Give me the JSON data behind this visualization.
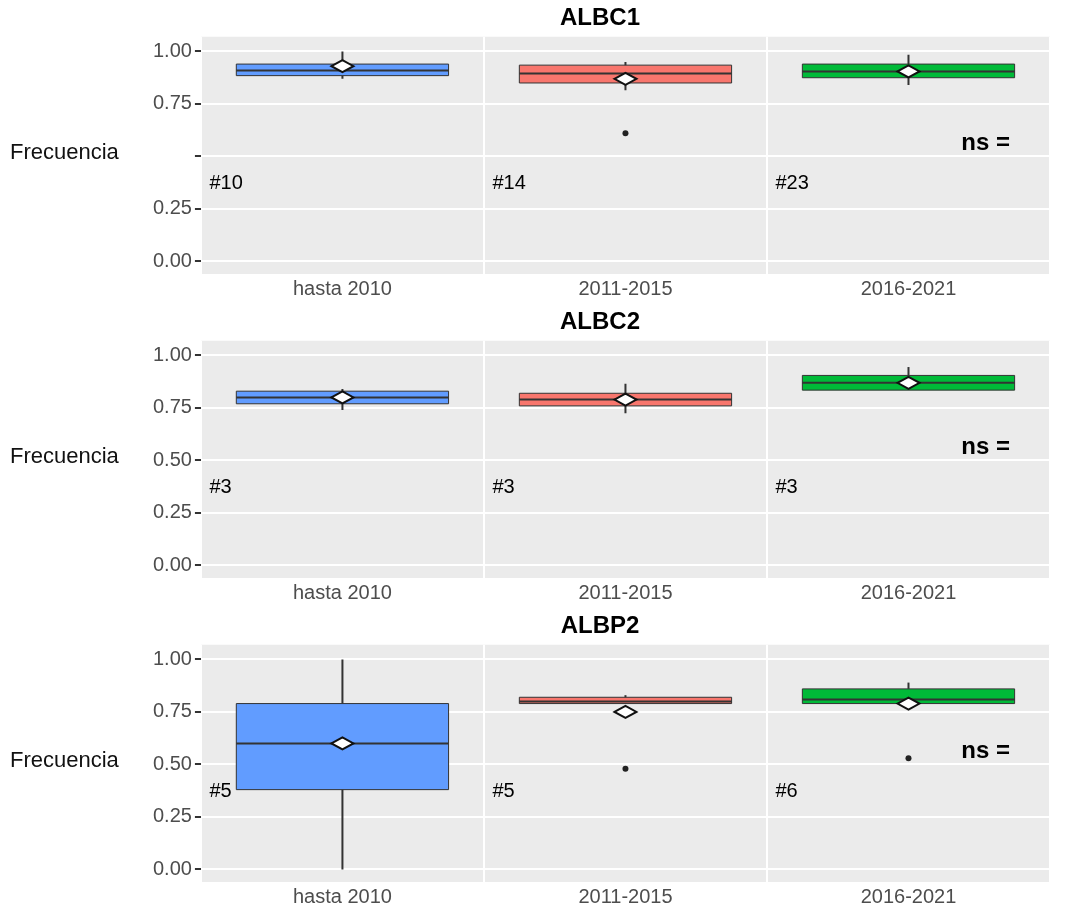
{
  "chart_data": [
    {
      "type": "box",
      "title": "ALBC1",
      "ylabel": "Frecuencia",
      "categories": [
        "hasta 2010",
        "2011-2015",
        "2016-2021"
      ],
      "colors": [
        "#619cff",
        "#f8766d",
        "#00ba38"
      ],
      "boxes": [
        {
          "low": 0.87,
          "q1": 0.885,
          "median": 0.91,
          "q3": 0.94,
          "high": 1.0,
          "mean": 0.93
        },
        {
          "low": 0.815,
          "q1": 0.85,
          "median": 0.895,
          "q3": 0.935,
          "high": 0.95,
          "mean": 0.87,
          "outliers": [
            0.61
          ]
        },
        {
          "low": 0.84,
          "q1": 0.875,
          "median": 0.905,
          "q3": 0.94,
          "high": 0.985,
          "mean": 0.905
        }
      ],
      "ylim": [
        -0.06,
        1.07
      ],
      "yticks": [
        {
          "value": 0,
          "label": "0.00"
        },
        {
          "value": 0.25,
          "label": "0.25"
        },
        {
          "value": 0.5,
          "label": null
        },
        {
          "value": 0.75,
          "label": "0.75"
        },
        {
          "value": 1,
          "label": "1.00"
        }
      ],
      "grid": true,
      "annotations": [
        "#10",
        "#14",
        "#23",
        "ns ="
      ]
    },
    {
      "type": "box",
      "title": "ALBC2",
      "ylabel": "Frecuencia",
      "categories": [
        "hasta 2010",
        "2011-2015",
        "2016-2021"
      ],
      "colors": [
        "#619cff",
        "#f8766d",
        "#00ba38"
      ],
      "boxes": [
        {
          "low": 0.74,
          "q1": 0.77,
          "median": 0.8,
          "q3": 0.83,
          "high": 0.84,
          "mean": 0.8
        },
        {
          "low": 0.725,
          "q1": 0.76,
          "median": 0.79,
          "q3": 0.82,
          "high": 0.865,
          "mean": 0.79
        },
        {
          "low": 0.835,
          "q1": 0.835,
          "median": 0.87,
          "q3": 0.905,
          "high": 0.945,
          "mean": 0.87
        }
      ],
      "ylim": [
        -0.06,
        1.07
      ],
      "yticks": [
        {
          "value": 0,
          "label": "0.00"
        },
        {
          "value": 0.25,
          "label": "0.25"
        },
        {
          "value": 0.5,
          "label": "0.50"
        },
        {
          "value": 0.75,
          "label": "0.75"
        },
        {
          "value": 1,
          "label": "1.00"
        }
      ],
      "grid": true,
      "annotations": [
        "#3",
        "#3",
        "#3",
        "ns ="
      ]
    },
    {
      "type": "box",
      "title": "ALBP2",
      "ylabel": "Frecuencia",
      "categories": [
        "hasta 2010",
        "2011-2015",
        "2016-2021"
      ],
      "colors": [
        "#619cff",
        "#f8766d",
        "#00ba38"
      ],
      "boxes": [
        {
          "low": 0.0,
          "q1": 0.38,
          "median": 0.6,
          "q3": 0.79,
          "high": 1.0,
          "mean": 0.6
        },
        {
          "low": 0.79,
          "q1": 0.79,
          "median": 0.8,
          "q3": 0.82,
          "high": 0.83,
          "mean": 0.75,
          "outliers": [
            0.48
          ]
        },
        {
          "low": 0.79,
          "q1": 0.79,
          "median": 0.81,
          "q3": 0.86,
          "high": 0.89,
          "mean": 0.79,
          "outliers": [
            0.53
          ]
        }
      ],
      "ylim": [
        -0.06,
        1.07
      ],
      "yticks": [
        {
          "value": 0,
          "label": "0.00"
        },
        {
          "value": 0.25,
          "label": "0.25"
        },
        {
          "value": 0.5,
          "label": "0.50"
        },
        {
          "value": 0.75,
          "label": "0.75"
        },
        {
          "value": 1,
          "label": "1.00"
        }
      ],
      "grid": true,
      "annotations": [
        "#5",
        "#5",
        "#6",
        "ns ="
      ]
    }
  ]
}
